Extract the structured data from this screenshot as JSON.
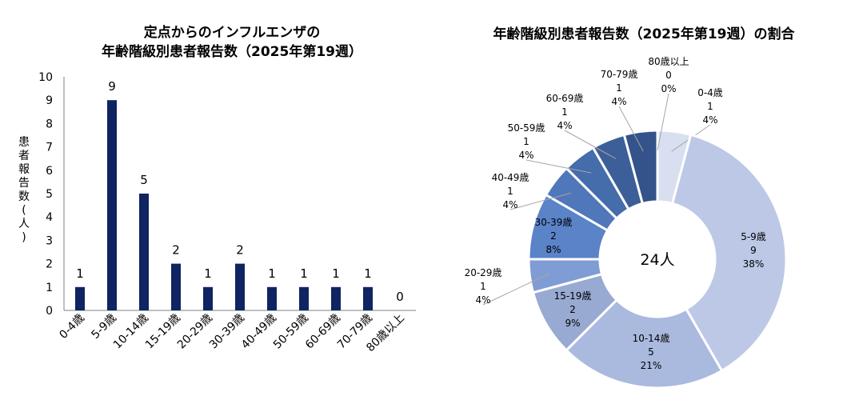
{
  "chart_data": [
    {
      "type": "bar",
      "title_lines": [
        "定点からのインフルエンザの",
        "年齢階級別患者報告数（2025年第19週）"
      ],
      "ylabel": "患者報告数(人)",
      "xlabel": "",
      "ylim": [
        0,
        10
      ],
      "yticks": [
        "0",
        "1",
        "2",
        "3",
        "4",
        "5",
        "6",
        "7",
        "8",
        "9",
        "10"
      ],
      "grid": false,
      "bar_color": "#0f2461",
      "categories": [
        "0-4歳",
        "5-9歳",
        "10-14歳",
        "15-19歳",
        "20-29歳",
        "30-39歳",
        "40-49歳",
        "50-59歳",
        "60-69歳",
        "70-79歳",
        "80歳以上"
      ],
      "values": [
        1,
        9,
        5,
        2,
        1,
        2,
        1,
        1,
        1,
        1,
        0
      ],
      "value_labels": [
        "1",
        "9",
        "5",
        "2",
        "1",
        "2",
        "1",
        "1",
        "1",
        "1",
        "0"
      ]
    },
    {
      "type": "pie",
      "title": "年齢階級別患者報告数（2025年第19週）の割合",
      "center_label": "24人",
      "total": 24,
      "slices": [
        {
          "category": "0-4歳",
          "count_label": "1",
          "pct_label": "4%",
          "value": 1,
          "color": "#d7dff0"
        },
        {
          "category": "5-9歳",
          "count_label": "9",
          "pct_label": "38%",
          "value": 9,
          "color": "#bcc8e6"
        },
        {
          "category": "10-14歳",
          "count_label": "5",
          "pct_label": "21%",
          "value": 5,
          "color": "#aab9de"
        },
        {
          "category": "15-19歳",
          "count_label": "2",
          "pct_label": "9%",
          "value": 2,
          "color": "#98a9d2"
        },
        {
          "category": "20-29歳",
          "count_label": "1",
          "pct_label": "4%",
          "value": 1,
          "color": "#809cd4"
        },
        {
          "category": "30-39歳",
          "count_label": "2",
          "pct_label": "8%",
          "value": 2,
          "color": "#5a83c8"
        },
        {
          "category": "40-49歳",
          "count_label": "1",
          "pct_label": "4%",
          "value": 1,
          "color": "#4f77ba"
        },
        {
          "category": "50-59歳",
          "count_label": "1",
          "pct_label": "4%",
          "value": 1,
          "color": "#456cab"
        },
        {
          "category": "60-69歳",
          "count_label": "1",
          "pct_label": "4%",
          "value": 1,
          "color": "#3c5f99"
        },
        {
          "category": "70-79歳",
          "count_label": "1",
          "pct_label": "4%",
          "value": 1,
          "color": "#33538a"
        },
        {
          "category": "80歳以上",
          "count_label": "0",
          "pct_label": "0%",
          "value": 0,
          "color": "#2a4577"
        }
      ]
    }
  ]
}
